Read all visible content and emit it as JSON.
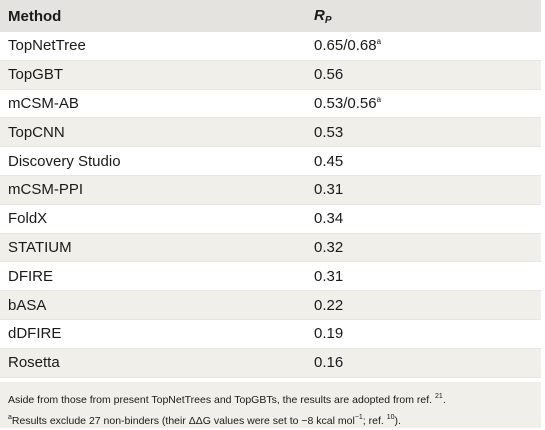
{
  "table": {
    "header": {
      "method": "Method",
      "rp_main": "R",
      "rp_sub": "P"
    },
    "rows": [
      {
        "method": "TopNetTree",
        "value": "0.65/0.68",
        "note": "a"
      },
      {
        "method": "TopGBT",
        "value": "0.56",
        "note": ""
      },
      {
        "method": "mCSM-AB",
        "value": "0.53/0.56",
        "note": "a"
      },
      {
        "method": "TopCNN",
        "value": "0.53",
        "note": ""
      },
      {
        "method": "Discovery Studio",
        "value": "0.45",
        "note": ""
      },
      {
        "method": "mCSM-PPI",
        "value": "0.31",
        "note": ""
      },
      {
        "method": "FoldX",
        "value": "0.34",
        "note": ""
      },
      {
        "method": "STATIUM",
        "value": "0.32",
        "note": ""
      },
      {
        "method": "DFIRE",
        "value": "0.31",
        "note": ""
      },
      {
        "method": "bASA",
        "value": "0.22",
        "note": ""
      },
      {
        "method": "dDFIRE",
        "value": "0.19",
        "note": ""
      },
      {
        "method": "Rosetta",
        "value": "0.16",
        "note": ""
      }
    ],
    "footnote_line1": "Aside from those from present TopNetTrees and TopGBTs, the results are adopted from ref.",
    "footnote_ref1": "21",
    "footnote_line2_mark": "a",
    "footnote_line2": "Results exclude 27 non-binders (their ΔΔG values were set to −8 kcal mol",
    "footnote_line2_exp": "−1",
    "footnote_line2_tail": "; ref.",
    "footnote_ref2": "10",
    "footnote_line2_end": ")."
  }
}
